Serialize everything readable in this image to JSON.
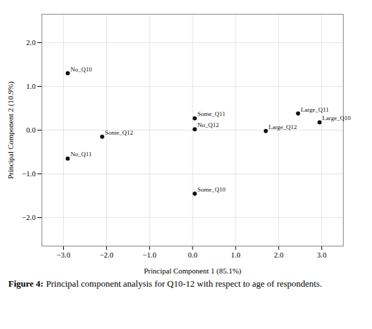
{
  "chart_data": {
    "type": "scatter",
    "xlabel": "Principal Component 1 (85.1%)",
    "ylabel": "Principal Component 2 (10.9%)",
    "labels": [
      "No_Q10",
      "No_Q11",
      "Some_Q12",
      "Some_Q11",
      "No_Q12",
      "Some_Q10",
      "Large_Q12",
      "Large_Q11",
      "Large_Q10"
    ],
    "x": [
      -2.9,
      -2.9,
      -2.1,
      0.05,
      0.05,
      0.05,
      1.7,
      2.45,
      2.95
    ],
    "y": [
      1.3,
      -0.65,
      -0.15,
      0.27,
      0.02,
      -1.45,
      -0.02,
      0.38,
      0.18
    ],
    "color": "#111111",
    "xlim": [
      -3.5,
      3.5
    ],
    "ylim": [
      -2.65,
      2.65
    ],
    "xticks": [
      -3,
      -2,
      -1,
      0,
      1,
      2,
      3
    ],
    "yticks": [
      -2,
      -1,
      0,
      1,
      2
    ],
    "grid": true,
    "caption": {
      "label": "Figure 4:",
      "text": "Principal component analysis for Q10-12 with respect to age of respondents."
    }
  }
}
